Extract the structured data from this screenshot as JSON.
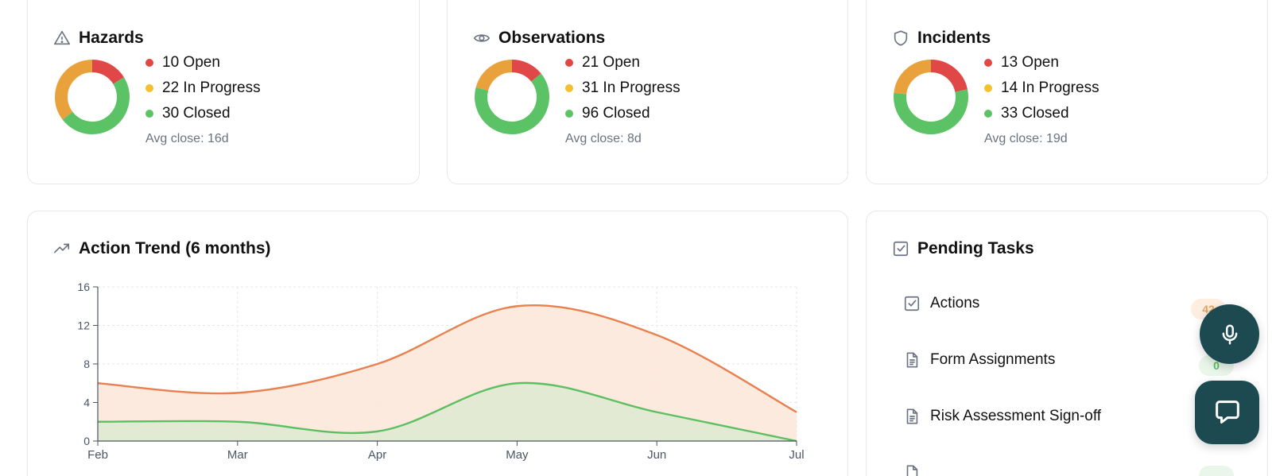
{
  "stat_cards": [
    {
      "title": "Hazards",
      "icon": "warning-triangle-icon",
      "open_label": "10 Open",
      "in_progress_label": "22 In Progress",
      "closed_label": "30 Closed",
      "avg_close": "Avg close: 16d",
      "counts": {
        "open": 10,
        "in_progress": 22,
        "closed": 30
      }
    },
    {
      "title": "Observations",
      "icon": "eye-icon",
      "open_label": "21 Open",
      "in_progress_label": "31 In Progress",
      "closed_label": "96 Closed",
      "avg_close": "Avg close: 8d",
      "counts": {
        "open": 21,
        "in_progress": 31,
        "closed": 96
      }
    },
    {
      "title": "Incidents",
      "icon": "shield-icon",
      "open_label": "13 Open",
      "in_progress_label": "14 In Progress",
      "closed_label": "33 Closed",
      "avg_close": "Avg close: 19d",
      "counts": {
        "open": 13,
        "in_progress": 14,
        "closed": 33
      }
    }
  ],
  "colors": {
    "open": "#e04848",
    "in_progress": "#f2c12e",
    "closed": "#5cc266",
    "donut_in_progress": "#e9a23b",
    "trend_orange": "#e8804f",
    "trend_green": "#5cbf61",
    "fab": "#1c4a50"
  },
  "trend": {
    "title": "Action Trend (6 months)",
    "icon": "trending-up-icon"
  },
  "chart_data": {
    "type": "area",
    "title": "Action Trend (6 months)",
    "x": [
      "Feb",
      "Mar",
      "Apr",
      "May",
      "Jun",
      "Jul"
    ],
    "ylim": [
      0,
      16
    ],
    "yticks": [
      0,
      4,
      8,
      12,
      16
    ],
    "grid": true,
    "series": [
      {
        "values": [
          6,
          5,
          8,
          14,
          11,
          3
        ],
        "color": "#e8804f"
      },
      {
        "values": [
          2,
          2,
          1,
          6,
          3,
          0
        ],
        "color": "#5cbf61"
      }
    ]
  },
  "tasks": {
    "title": "Pending Tasks",
    "icon": "checkbox-icon",
    "items": [
      {
        "label": "Actions",
        "icon": "checkbox-icon",
        "count": "42"
      },
      {
        "label": "Form Assignments",
        "icon": "document-icon",
        "count": "0"
      },
      {
        "label": "Risk Assessment Sign-off",
        "icon": "document-icon",
        "count": ""
      }
    ]
  },
  "fabs": {
    "voice": "microphone-icon",
    "chat": "chat-bubble-icon"
  }
}
